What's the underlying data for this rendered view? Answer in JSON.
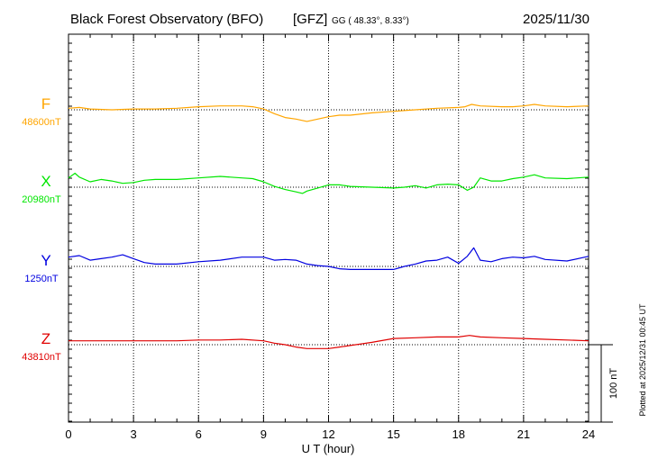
{
  "header": {
    "title": "Black Forest Observatory (BFO)",
    "institute": "[GFZ]",
    "coords": "GG ( 48.33°,   8.33°)",
    "date": "2025/11/30"
  },
  "footer": {
    "plotted_note": "Plotted at 2025/12/31 00:45 UT"
  },
  "chart_data": {
    "type": "line",
    "xlabel": "U T (hour)",
    "xlim": [
      0,
      24
    ],
    "x_ticks": [
      0,
      3,
      6,
      9,
      12,
      15,
      18,
      21,
      24
    ],
    "x_tick_labels": [
      "0",
      "3",
      "6",
      "9",
      "12",
      "15",
      "18",
      "21",
      "24"
    ],
    "grid": true,
    "scale_bar": {
      "label": "100 nT",
      "value_nT": 100
    },
    "series": [
      {
        "name": "F",
        "baseline_label": "48600nT",
        "baseline_nT": 48600,
        "color": "#ffa500",
        "points": [
          [
            0,
            48602
          ],
          [
            0.5,
            48603
          ],
          [
            1,
            48601
          ],
          [
            2,
            48600
          ],
          [
            3,
            48601
          ],
          [
            4,
            48601
          ],
          [
            5,
            48602
          ],
          [
            6,
            48604
          ],
          [
            7,
            48605
          ],
          [
            8,
            48605
          ],
          [
            8.5,
            48604
          ],
          [
            9,
            48601
          ],
          [
            9.5,
            48595
          ],
          [
            10,
            48590
          ],
          [
            10.5,
            48588
          ],
          [
            11,
            48585
          ],
          [
            11.5,
            48588
          ],
          [
            12,
            48591
          ],
          [
            12.5,
            48593
          ],
          [
            13,
            48593
          ],
          [
            14,
            48596
          ],
          [
            15,
            48598
          ],
          [
            16,
            48600
          ],
          [
            17,
            48602
          ],
          [
            18,
            48603
          ],
          [
            18.3,
            48604
          ],
          [
            18.6,
            48607
          ],
          [
            19,
            48605
          ],
          [
            20,
            48604
          ],
          [
            20.5,
            48604
          ],
          [
            21,
            48605
          ],
          [
            21.5,
            48607
          ],
          [
            22,
            48605
          ],
          [
            23,
            48604
          ],
          [
            24,
            48605
          ]
        ]
      },
      {
        "name": "X",
        "baseline_label": "20980nT",
        "baseline_nT": 20980,
        "color": "#00e600",
        "points": [
          [
            0,
            20992
          ],
          [
            0.3,
            20998
          ],
          [
            0.5,
            20993
          ],
          [
            1,
            20987
          ],
          [
            1.5,
            20990
          ],
          [
            2,
            20988
          ],
          [
            2.5,
            20985
          ],
          [
            3,
            20986
          ],
          [
            3.5,
            20989
          ],
          [
            4,
            20990
          ],
          [
            5,
            20990
          ],
          [
            6,
            20992
          ],
          [
            7,
            20994
          ],
          [
            8,
            20992
          ],
          [
            8.5,
            20991
          ],
          [
            9,
            20987
          ],
          [
            9.5,
            20981
          ],
          [
            10,
            20977
          ],
          [
            10.5,
            20974
          ],
          [
            10.8,
            20972
          ],
          [
            11,
            20975
          ],
          [
            11.5,
            20979
          ],
          [
            12,
            20983
          ],
          [
            12.5,
            20983
          ],
          [
            13,
            20981
          ],
          [
            14,
            20980
          ],
          [
            15,
            20979
          ],
          [
            15.5,
            20980
          ],
          [
            16,
            20982
          ],
          [
            16.5,
            20979
          ],
          [
            17,
            20983
          ],
          [
            17.5,
            20984
          ],
          [
            18,
            20983
          ],
          [
            18.4,
            20976
          ],
          [
            18.7,
            20980
          ],
          [
            19,
            20992
          ],
          [
            19.5,
            20988
          ],
          [
            20,
            20988
          ],
          [
            20.5,
            20991
          ],
          [
            21,
            20993
          ],
          [
            21.5,
            20996
          ],
          [
            22,
            20992
          ],
          [
            23,
            20991
          ],
          [
            24,
            20993
          ]
        ]
      },
      {
        "name": "Y",
        "baseline_label": "1250nT",
        "baseline_nT": 1250,
        "color": "#0000e0",
        "points": [
          [
            0,
            1262
          ],
          [
            0.5,
            1264
          ],
          [
            1,
            1258
          ],
          [
            1.5,
            1260
          ],
          [
            2,
            1262
          ],
          [
            2.5,
            1265
          ],
          [
            3,
            1260
          ],
          [
            3.5,
            1255
          ],
          [
            4,
            1253
          ],
          [
            5,
            1253
          ],
          [
            6,
            1256
          ],
          [
            7,
            1258
          ],
          [
            8,
            1262
          ],
          [
            9,
            1262
          ],
          [
            9.5,
            1258
          ],
          [
            10,
            1259
          ],
          [
            10.5,
            1258
          ],
          [
            11,
            1253
          ],
          [
            11.5,
            1251
          ],
          [
            12,
            1250
          ],
          [
            12.5,
            1247
          ],
          [
            13,
            1246
          ],
          [
            14,
            1246
          ],
          [
            15,
            1246
          ],
          [
            15.5,
            1250
          ],
          [
            16,
            1253
          ],
          [
            16.5,
            1257
          ],
          [
            17,
            1258
          ],
          [
            17.5,
            1262
          ],
          [
            18,
            1254
          ],
          [
            18.4,
            1263
          ],
          [
            18.7,
            1274
          ],
          [
            19,
            1258
          ],
          [
            19.5,
            1256
          ],
          [
            20,
            1260
          ],
          [
            20.5,
            1262
          ],
          [
            21,
            1261
          ],
          [
            21.5,
            1263
          ],
          [
            22,
            1259
          ],
          [
            23,
            1257
          ],
          [
            24,
            1263
          ]
        ]
      },
      {
        "name": "Z",
        "baseline_label": "43810nT",
        "baseline_nT": 43810,
        "color": "#e00000",
        "points": [
          [
            0,
            43815
          ],
          [
            1,
            43815
          ],
          [
            2,
            43815
          ],
          [
            3,
            43815
          ],
          [
            4,
            43815
          ],
          [
            5,
            43815
          ],
          [
            6,
            43816
          ],
          [
            7,
            43816
          ],
          [
            8,
            43817
          ],
          [
            9,
            43815
          ],
          [
            9.5,
            43812
          ],
          [
            10,
            43810
          ],
          [
            10.5,
            43807
          ],
          [
            11,
            43805
          ],
          [
            11.5,
            43805
          ],
          [
            12,
            43805
          ],
          [
            12.5,
            43807
          ],
          [
            13,
            43809
          ],
          [
            14,
            43813
          ],
          [
            15,
            43818
          ],
          [
            16,
            43819
          ],
          [
            17,
            43820
          ],
          [
            18,
            43820
          ],
          [
            18.5,
            43822
          ],
          [
            19,
            43820
          ],
          [
            20,
            43819
          ],
          [
            21,
            43818
          ],
          [
            22,
            43817
          ],
          [
            23,
            43816
          ],
          [
            24,
            43815
          ]
        ]
      }
    ]
  }
}
